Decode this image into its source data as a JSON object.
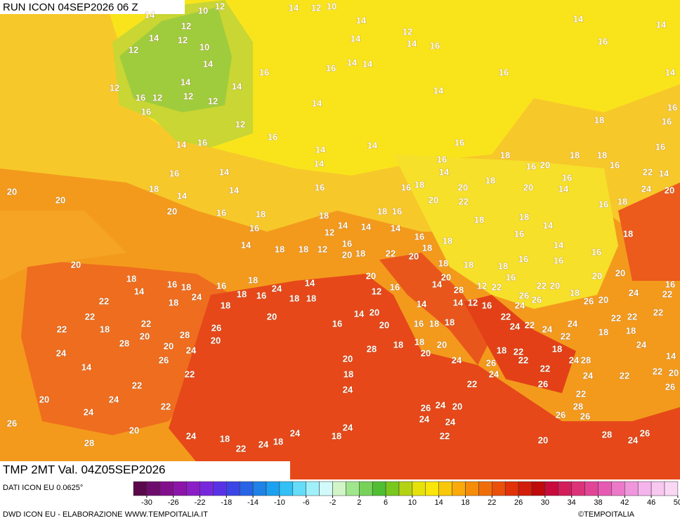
{
  "header": {
    "run": "RUN ICON 04SEP2026 06 Z",
    "field": "TMP 2MT Val. 04Z05SEP2026"
  },
  "footer": {
    "source": "DATI ICON EU 0.0625°",
    "credit": "DWD ICON EU - ELABORAZIONE WWW.TEMPOITALIA.IT",
    "copyright": "©TEMPOITALIA"
  },
  "colorbar": {
    "ticks": [
      -30,
      -26,
      -22,
      -18,
      -14,
      -10,
      -6,
      -2,
      2,
      6,
      10,
      14,
      18,
      22,
      26,
      30,
      34,
      38,
      42,
      46,
      50
    ]
  },
  "map": {
    "temperature_labels": [
      10,
      12,
      14,
      12,
      10,
      14,
      14,
      14,
      12,
      14,
      12,
      14,
      12,
      14,
      14,
      16,
      16,
      12,
      10,
      14,
      14,
      14,
      16,
      16,
      14,
      16,
      14,
      14,
      12,
      14,
      16,
      12,
      12,
      12,
      14,
      16,
      16,
      12,
      18,
      16,
      16,
      14,
      16,
      14,
      14,
      16,
      16,
      18,
      16,
      18,
      18,
      14,
      14,
      16,
      20,
      16,
      22,
      14,
      16,
      14,
      16,
      18,
      20,
      20,
      18,
      14,
      14,
      16,
      16,
      18,
      20,
      20,
      14,
      24,
      20,
      20,
      22,
      16,
      18,
      20,
      16,
      18,
      18,
      18,
      16,
      18,
      18,
      14,
      14,
      16,
      12,
      14,
      16,
      14,
      16,
      18,
      14,
      18,
      18,
      12,
      16,
      18,
      18,
      14,
      16,
      20,
      18,
      22,
      20,
      16,
      20,
      18,
      18,
      16,
      18,
      20,
      20,
      18,
      16,
      18,
      16,
      20,
      16,
      20,
      14,
      18,
      24,
      18,
      14,
      12,
      16,
      14,
      12,
      22,
      22,
      20,
      18,
      16,
      22,
      18,
      24,
      18,
      16,
      18,
      18,
      28,
      26,
      24,
      22,
      14,
      14,
      12,
      16,
      24,
      26,
      26,
      20,
      22,
      20,
      14,
      20,
      22,
      22,
      22,
      22,
      22,
      18,
      22,
      26,
      16,
      20,
      16,
      18,
      18,
      24,
      22,
      24,
      24,
      18,
      20,
      28,
      28,
      20,
      20,
      24,
      28,
      18,
      18,
      20,
      20,
      18,
      22,
      18,
      22,
      18,
      24,
      24,
      26,
      20,
      24,
      26,
      24,
      28,
      14,
      14,
      22,
      18,
      24,
      22,
      22,
      22,
      20,
      22,
      24,
      22,
      24,
      22,
      26,
      22,
      26,
      20,
      24,
      22,
      26,
      24,
      20,
      28,
      24,
      26,
      24,
      24,
      26,
      26,
      20,
      24,
      24,
      24,
      18,
      18,
      22,
      26,
      28,
      22,
      24,
      18,
      24,
      20,
      28
    ]
  }
}
